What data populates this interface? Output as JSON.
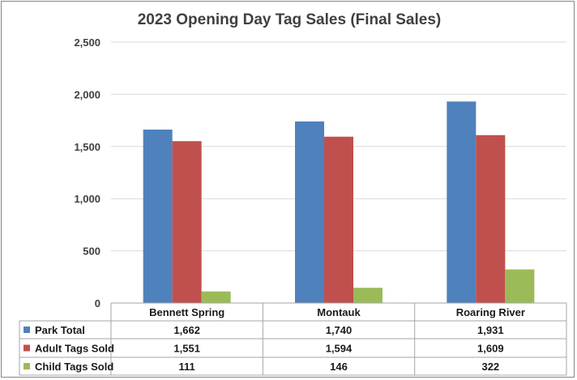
{
  "chart_data": {
    "type": "bar",
    "title": "2023 Opening Day Tag Sales (Final Sales)",
    "categories": [
      "Bennett Spring",
      "Montauk",
      "Roaring River"
    ],
    "series": [
      {
        "name": "Park Total",
        "color": "#4f81bd",
        "values": [
          1662,
          1740,
          1931
        ],
        "labels": [
          "1,662",
          "1,740",
          "1,931"
        ]
      },
      {
        "name": "Adult Tags Sold",
        "color": "#c0504d",
        "values": [
          1551,
          1594,
          1609
        ],
        "labels": [
          "1,551",
          "1,594",
          "1,609"
        ]
      },
      {
        "name": "Child Tags Sold",
        "color": "#9bbb59",
        "values": [
          111,
          146,
          322
        ],
        "labels": [
          "111",
          "146",
          "322"
        ]
      }
    ],
    "ylim": [
      0,
      2500
    ],
    "yticks": [
      0,
      500,
      1000,
      1500,
      2000,
      2500
    ],
    "ytick_labels": [
      "0",
      "500",
      "1,000",
      "1,500",
      "2,000",
      "2,500"
    ],
    "grid": true,
    "legend": "data table with legend keys below the chart"
  }
}
